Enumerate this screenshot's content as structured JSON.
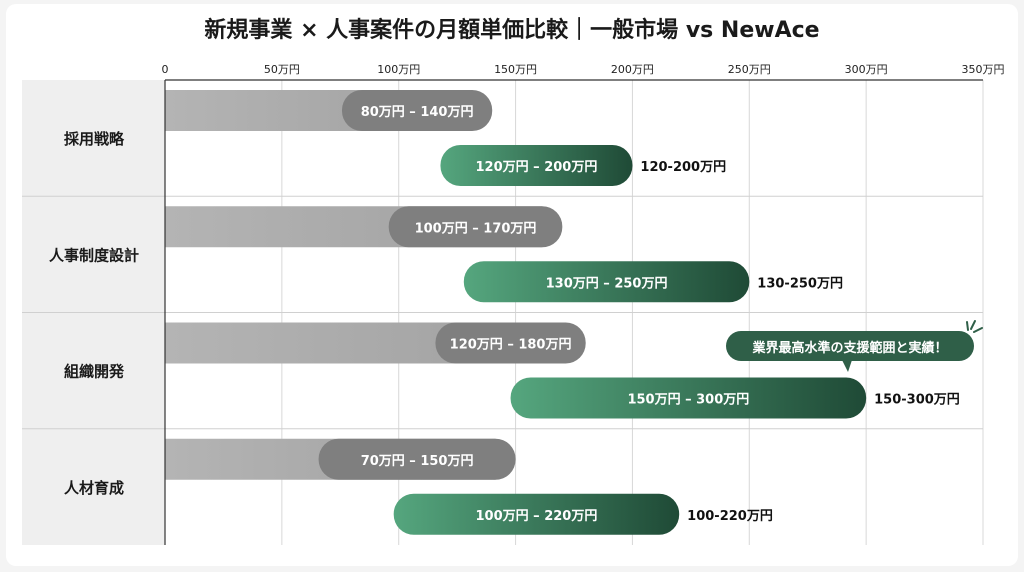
{
  "title": "新規事業 × 人事案件の月額単価比較｜一般市場 vs NewAce",
  "chart_data": {
    "type": "bar",
    "title": "新規事業 × 人事案件の月額単価比較｜一般市場 vs NewAce",
    "orientation": "horizontal-range",
    "categories": [
      "採用戦略",
      "人事制度設計",
      "組織開発",
      "人材育成"
    ],
    "xlim": [
      0,
      350
    ],
    "xticks": [
      0,
      50,
      100,
      150,
      200,
      250,
      300,
      350
    ],
    "xtick_labels": [
      "0",
      "50万円",
      "100万円",
      "150万円",
      "200万円",
      "250万円",
      "300万円",
      "350万円"
    ],
    "grid": true,
    "series": [
      {
        "key": "market",
        "color": "#8a8a8a",
        "ranges": [
          [
            80,
            140
          ],
          [
            100,
            170
          ],
          [
            120,
            180
          ],
          [
            70,
            150
          ]
        ],
        "labels": [
          "80万円 – 140万円",
          "100万円 – 170万円",
          "120万円 – 180万円",
          "70万円 – 150万円"
        ]
      },
      {
        "key": "newace",
        "color": "#3f8a66",
        "ranges": [
          [
            120,
            200
          ],
          [
            130,
            250
          ],
          [
            150,
            300
          ],
          [
            100,
            220
          ]
        ],
        "labels": [
          "120万円 – 200万円",
          "130万円 – 250万円",
          "150万円 – 300万円",
          "100万円 – 220万円"
        ],
        "side_labels": [
          "120-200万円",
          "130-250万円",
          "150-300万円",
          "100-220万円"
        ]
      }
    ],
    "annotation": "業界最高水準の支援範囲と実績！"
  }
}
